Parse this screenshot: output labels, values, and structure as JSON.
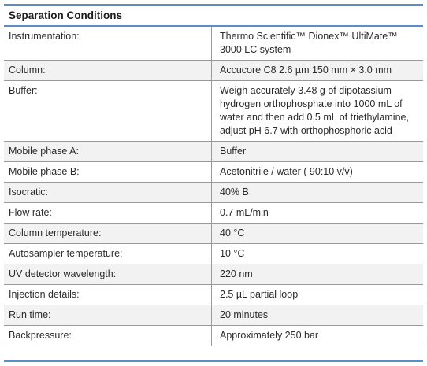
{
  "table": {
    "title": "Separation Conditions",
    "rows": [
      {
        "label": "Instrumentation:",
        "value": "Thermo Scientific™ Dionex™ UltiMate™ 3000 LC system"
      },
      {
        "label": "Column:",
        "value": "Accucore C8 2.6 µm 150 mm × 3.0 mm"
      },
      {
        "label": "Buffer:",
        "value": "Weigh accurately 3.48 g of dipotassium hydrogen orthophosphate into 1000 mL of water and then add 0.5 mL of triethylamine, adjust pH 6.7 with orthophosphoric acid"
      },
      {
        "label": "Mobile phase A:",
        "value": "Buffer"
      },
      {
        "label": "Mobile phase B:",
        "value": "Acetonitrile / water ( 90:10 v/v)"
      },
      {
        "label": "Isocratic:",
        "value": "40% B"
      },
      {
        "label": "Flow rate:",
        "value": "0.7 mL/min"
      },
      {
        "label": "Column temperature:",
        "value": "40 °C"
      },
      {
        "label": "Autosampler temperature:",
        "value": "10 °C"
      },
      {
        "label": "UV detector wavelength:",
        "value": "220 nm"
      },
      {
        "label": "Injection details:",
        "value": "2.5 µL partial loop"
      },
      {
        "label": "Run time:",
        "value": "20 minutes"
      },
      {
        "label": "Backpressure:",
        "value": "Approximately 250 bar"
      }
    ]
  },
  "colors": {
    "accent_rule": "#5b8dc6",
    "row_shade": "#f2f2f2",
    "grid_line": "#9a9a9a"
  }
}
